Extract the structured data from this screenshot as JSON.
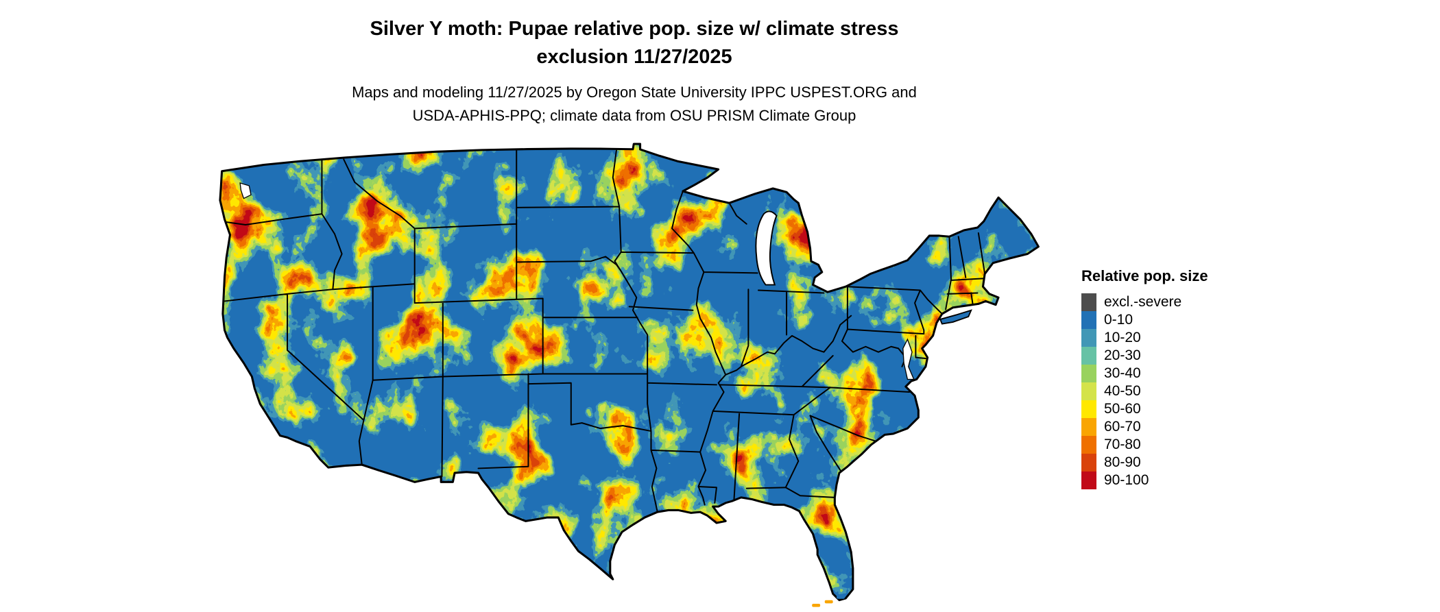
{
  "header": {
    "title_line1": "Silver Y moth: Pupae relative pop. size w/ climate stress",
    "title_line2": "exclusion 11/27/2025",
    "subtitle_line1": "Maps and modeling 11/27/2025 by Oregon State University IPPC USPEST.ORG and",
    "subtitle_line2": "USDA-APHIS-PPQ; climate data from OSU PRISM Climate Group"
  },
  "legend": {
    "title": "Relative pop. size",
    "items": [
      {
        "label": "excl.-severe",
        "color": "#4d4d4d"
      },
      {
        "label": "0-10",
        "color": "#2171b5"
      },
      {
        "label": "10-20",
        "color": "#4197b6"
      },
      {
        "label": "20-30",
        "color": "#66c2a5"
      },
      {
        "label": "30-40",
        "color": "#99d25e"
      },
      {
        "label": "40-50",
        "color": "#d4e34a"
      },
      {
        "label": "50-60",
        "color": "#ffe800"
      },
      {
        "label": "60-70",
        "color": "#f9a502"
      },
      {
        "label": "70-80",
        "color": "#ef7000"
      },
      {
        "label": "80-90",
        "color": "#d9420b"
      },
      {
        "label": "90-100",
        "color": "#c10a18"
      }
    ]
  },
  "map": {
    "base_color": "#2171b5",
    "boundary_color": "#000000",
    "background_color": "#ffffff"
  }
}
